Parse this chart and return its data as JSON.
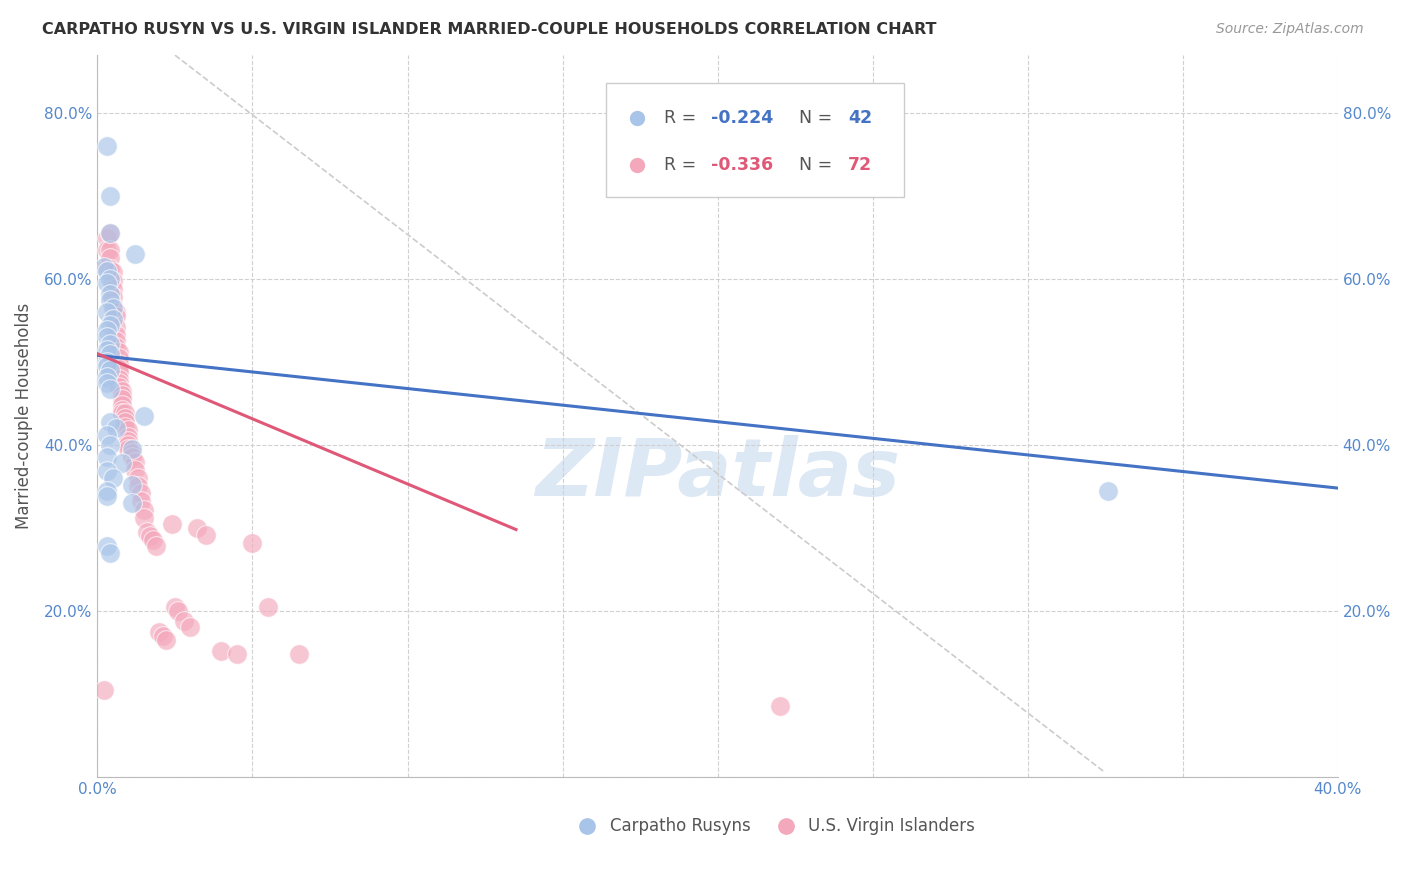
{
  "title": "CARPATHO RUSYN VS U.S. VIRGIN ISLANDER MARRIED-COUPLE HOUSEHOLDS CORRELATION CHART",
  "source": "Source: ZipAtlas.com",
  "ylabel": "Married-couple Households",
  "xlim": [
    0.0,
    0.4
  ],
  "ylim": [
    0.0,
    0.87
  ],
  "xtick_positions": [
    0.0,
    0.05,
    0.1,
    0.15,
    0.2,
    0.25,
    0.3,
    0.35,
    0.4
  ],
  "xtick_labels": [
    "0.0%",
    "",
    "",
    "",
    "",
    "",
    "",
    "",
    "40.0%"
  ],
  "ytick_positions": [
    0.0,
    0.2,
    0.4,
    0.6,
    0.8
  ],
  "ytick_labels": [
    "",
    "20.0%",
    "40.0%",
    "60.0%",
    "80.0%"
  ],
  "blue_color": "#a8c4e8",
  "pink_color": "#f4a8bc",
  "blue_line_color": "#4472c4",
  "pink_line_color": "#e05878",
  "grid_color": "#d0d0d0",
  "watermark": "ZIPatlas",
  "watermark_color": "#dde8f5",
  "legend_blue_r": "-0.224",
  "legend_blue_n": "42",
  "legend_pink_r": "-0.336",
  "legend_pink_n": "72",
  "blue_scatter_x": [
    0.003,
    0.004,
    0.004,
    0.012,
    0.002,
    0.003,
    0.004,
    0.003,
    0.004,
    0.004,
    0.005,
    0.003,
    0.005,
    0.004,
    0.003,
    0.003,
    0.004,
    0.003,
    0.004,
    0.003,
    0.003,
    0.004,
    0.003,
    0.003,
    0.004,
    0.015,
    0.004,
    0.006,
    0.003,
    0.004,
    0.011,
    0.003,
    0.008,
    0.003,
    0.005,
    0.011,
    0.003,
    0.003,
    0.011,
    0.003,
    0.004,
    0.326
  ],
  "blue_scatter_y": [
    0.76,
    0.7,
    0.655,
    0.63,
    0.615,
    0.61,
    0.6,
    0.595,
    0.582,
    0.575,
    0.565,
    0.56,
    0.552,
    0.545,
    0.538,
    0.53,
    0.522,
    0.515,
    0.51,
    0.5,
    0.495,
    0.49,
    0.482,
    0.475,
    0.468,
    0.435,
    0.428,
    0.42,
    0.412,
    0.4,
    0.395,
    0.386,
    0.378,
    0.368,
    0.36,
    0.352,
    0.345,
    0.338,
    0.33,
    0.278,
    0.27,
    0.345
  ],
  "pink_scatter_x": [
    0.002,
    0.003,
    0.003,
    0.003,
    0.004,
    0.004,
    0.004,
    0.004,
    0.005,
    0.005,
    0.005,
    0.005,
    0.005,
    0.006,
    0.006,
    0.006,
    0.006,
    0.006,
    0.006,
    0.007,
    0.007,
    0.007,
    0.007,
    0.007,
    0.007,
    0.007,
    0.007,
    0.008,
    0.008,
    0.008,
    0.008,
    0.008,
    0.008,
    0.009,
    0.009,
    0.009,
    0.009,
    0.01,
    0.01,
    0.01,
    0.01,
    0.01,
    0.011,
    0.011,
    0.012,
    0.012,
    0.013,
    0.013,
    0.014,
    0.014,
    0.015,
    0.015,
    0.016,
    0.017,
    0.018,
    0.019,
    0.02,
    0.021,
    0.022,
    0.024,
    0.025,
    0.026,
    0.028,
    0.03,
    0.032,
    0.035,
    0.04,
    0.045,
    0.05,
    0.055,
    0.065,
    0.22
  ],
  "pink_scatter_y": [
    0.105,
    0.65,
    0.635,
    0.615,
    0.655,
    0.635,
    0.625,
    0.612,
    0.608,
    0.598,
    0.588,
    0.578,
    0.568,
    0.56,
    0.555,
    0.542,
    0.532,
    0.525,
    0.518,
    0.512,
    0.505,
    0.498,
    0.492,
    0.488,
    0.48,
    0.475,
    0.47,
    0.465,
    0.46,
    0.455,
    0.448,
    0.442,
    0.438,
    0.438,
    0.432,
    0.428,
    0.422,
    0.418,
    0.41,
    0.405,
    0.4,
    0.395,
    0.39,
    0.385,
    0.38,
    0.37,
    0.36,
    0.35,
    0.342,
    0.332,
    0.322,
    0.312,
    0.295,
    0.29,
    0.285,
    0.278,
    0.175,
    0.17,
    0.165,
    0.305,
    0.205,
    0.2,
    0.188,
    0.18,
    0.3,
    0.292,
    0.152,
    0.148,
    0.282,
    0.205,
    0.148,
    0.085
  ],
  "blue_line_x": [
    0.0,
    0.4
  ],
  "blue_line_y": [
    0.508,
    0.348
  ],
  "pink_line_x": [
    0.0,
    0.135
  ],
  "pink_line_y": [
    0.51,
    0.298
  ],
  "gray_line_x": [
    0.025,
    0.325
  ],
  "gray_line_y": [
    0.87,
    0.005
  ]
}
